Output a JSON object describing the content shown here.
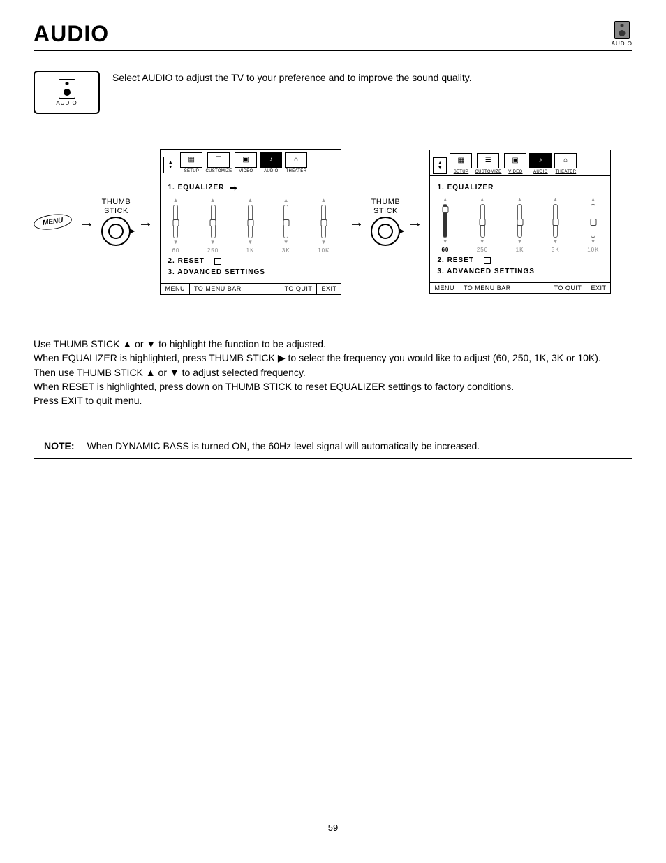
{
  "page": {
    "title": "AUDIO",
    "corner_label": "AUDIO",
    "number": "59"
  },
  "intro": {
    "card_label": "AUDIO",
    "text": "Select AUDIO to adjust the TV to your preference and to improve the sound quality."
  },
  "diagram": {
    "menu_button": "MENU",
    "thumb_stick_label": "THUMB\nSTICK",
    "tabs": [
      {
        "label": "SETUP",
        "glyph": "▦"
      },
      {
        "label": "CUSTOMIZE",
        "glyph": "☰"
      },
      {
        "label": "VIDEO",
        "glyph": "▣"
      },
      {
        "label": "AUDIO",
        "glyph": "♪"
      },
      {
        "label": "THEATER",
        "glyph": "⌂"
      }
    ],
    "panel1": {
      "items": {
        "equalizer": "1. EQUALIZER",
        "reset": "2. RESET",
        "advanced": "3. ADVANCED SETTINGS"
      },
      "freqs": [
        "60",
        "250",
        "1K",
        "3K",
        "10K"
      ],
      "active_idx": -1
    },
    "panel2": {
      "items": {
        "equalizer": "1. EQUALIZER",
        "reset": "2. RESET",
        "advanced": "3. ADVANCED SETTINGS"
      },
      "freqs": [
        "60",
        "250",
        "1K",
        "3K",
        "10K"
      ],
      "active_idx": 0
    },
    "footer": {
      "menu": "MENU",
      "to_bar": "TO MENU BAR",
      "to_quit": "TO QUIT",
      "exit": "EXIT"
    }
  },
  "body": {
    "l1a": "Use THUMB STICK ",
    "l1b": " or ",
    "l1c": " to highlight the function to be adjusted.",
    "l2a": "When EQUALIZER is highlighted, press THUMB STICK ",
    "l2b": " to select the frequency you would like to adjust (60, 250, 1K, 3K or 10K).",
    "l3a": "Then use THUMB STICK ",
    "l3b": " or ",
    "l3c": " to adjust selected frequency.",
    "l4": "When RESET is highlighted, press down on THUMB STICK to reset EQUALIZER settings to factory conditions.",
    "l5": "Press EXIT to quit menu.",
    "tri_up": "▲",
    "tri_dn": "▼",
    "tri_rt": "▶"
  },
  "note": {
    "label": "NOTE:",
    "text": "When DYNAMIC BASS is turned ON, the 60Hz level signal will automatically be increased."
  },
  "colors": {
    "text": "#000000",
    "bg": "#ffffff",
    "muted": "#999999"
  }
}
